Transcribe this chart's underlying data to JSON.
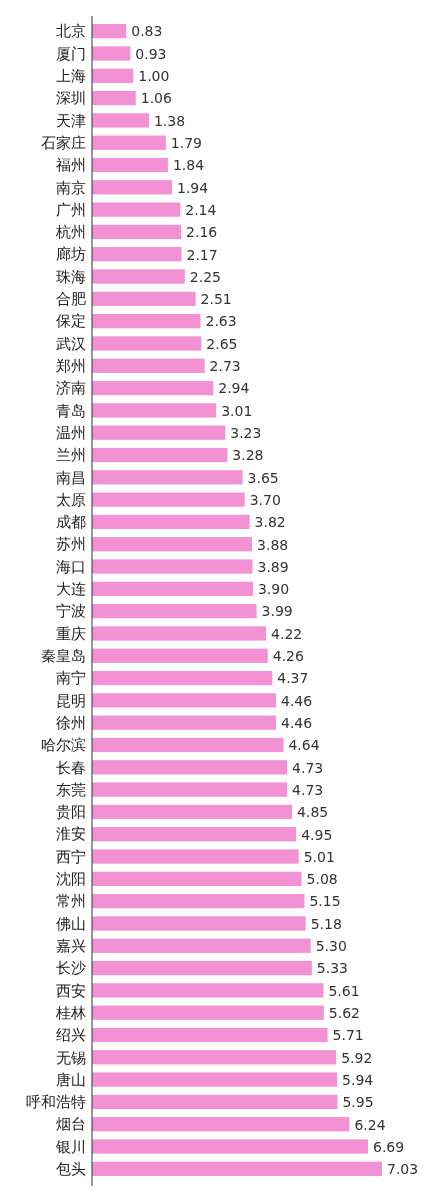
{
  "chart_data": {
    "type": "bar",
    "orientation": "horizontal",
    "color": "#f291d3",
    "categories": [
      "北京",
      "厦门",
      "上海",
      "深圳",
      "天津",
      "石家庄",
      "福州",
      "南京",
      "广州",
      "杭州",
      "廊坊",
      "珠海",
      "合肥",
      "保定",
      "武汉",
      "郑州",
      "济南",
      "青岛",
      "温州",
      "兰州",
      "南昌",
      "太原",
      "成都",
      "苏州",
      "海口",
      "大连",
      "宁波",
      "重庆",
      "秦皇岛",
      "南宁",
      "昆明",
      "徐州",
      "哈尔滨",
      "长春",
      "东莞",
      "贵阳",
      "淮安",
      "西宁",
      "沈阳",
      "常州",
      "佛山",
      "嘉兴",
      "长沙",
      "西安",
      "桂林",
      "绍兴",
      "无锡",
      "唐山",
      "呼和浩特",
      "烟台",
      "银川",
      "包头"
    ],
    "values": [
      0.83,
      0.93,
      1.0,
      1.06,
      1.38,
      1.79,
      1.84,
      1.94,
      2.14,
      2.16,
      2.17,
      2.25,
      2.51,
      2.63,
      2.65,
      2.73,
      2.94,
      3.01,
      3.23,
      3.28,
      3.65,
      3.7,
      3.82,
      3.88,
      3.89,
      3.9,
      3.99,
      4.22,
      4.26,
      4.37,
      4.46,
      4.46,
      4.64,
      4.73,
      4.73,
      4.85,
      4.95,
      5.01,
      5.08,
      5.15,
      5.18,
      5.3,
      5.33,
      5.61,
      5.62,
      5.71,
      5.92,
      5.94,
      5.95,
      6.24,
      6.69,
      7.03
    ],
    "value_labels": [
      "0.83",
      "0.93",
      "1.00",
      "1.06",
      "1.38",
      "1.79",
      "1.84",
      "1.94",
      "2.14",
      "2.16",
      "2.17",
      "2.25",
      "2.51",
      "2.63",
      "2.65",
      "2.73",
      "2.94",
      "3.01",
      "3.23",
      "3.28",
      "3.65",
      "3.70",
      "3.82",
      "3.88",
      "3.89",
      "3.90",
      "3.99",
      "4.22",
      "4.26",
      "4.37",
      "4.46",
      "4.46",
      "4.64",
      "4.73",
      "4.73",
      "4.85",
      "4.95",
      "5.01",
      "5.08",
      "5.15",
      "5.18",
      "5.30",
      "5.33",
      "5.61",
      "5.62",
      "5.71",
      "5.92",
      "5.94",
      "5.95",
      "6.24",
      "6.69",
      "7.03"
    ]
  }
}
